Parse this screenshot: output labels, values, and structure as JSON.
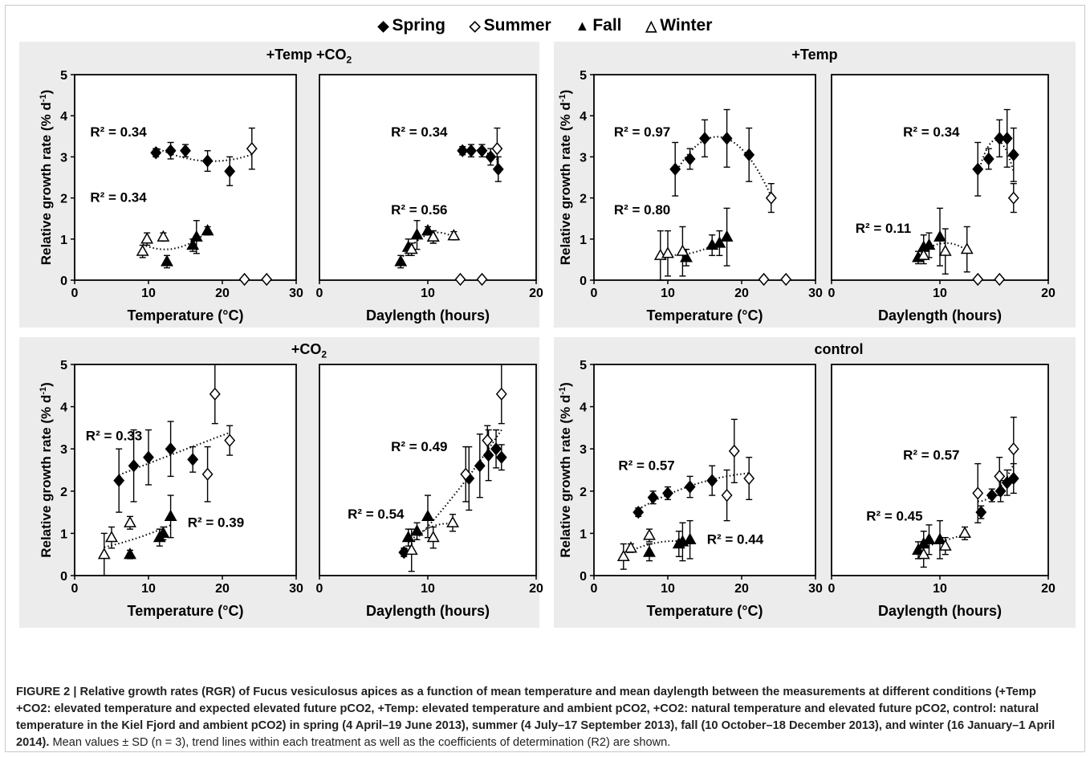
{
  "legend": [
    {
      "label": "Spring",
      "symbol": "filled-diamond"
    },
    {
      "label": "Summer",
      "symbol": "open-diamond"
    },
    {
      "label": "Fall",
      "symbol": "filled-triangle"
    },
    {
      "label": "Winter",
      "symbol": "open-triangle"
    }
  ],
  "panel_titles": {
    "temp_co2_prefix": "+Temp +CO",
    "temp_co2_sub": "2",
    "temp": "+Temp",
    "co2_prefix": "+CO",
    "co2_sub": "2",
    "control": "control"
  },
  "axis_labels": {
    "ylabel": "Relative growth rate (% d",
    "ylabel_sup": "-1",
    "ylabel_end": ")",
    "xlabel_temp": "Temperature (°C)",
    "xlabel_day": "Daylength (hours)"
  },
  "caption": {
    "bold_part": "FIGURE 2 | Relative growth rates (RGR) of Fucus vesiculosus apices as a function of mean temperature and mean daylength between the measurements at different conditions (+Temp +CO2: elevated temperature and expected elevated future pCO2, +Temp: elevated temperature and ambient pCO2, +CO2: natural temperature and elevated future pCO2, control: natural temperature in the Kiel Fjord and ambient pCO2) in spring (4 April–19 June 2013), summer (4 July–17 September 2013), fall (10 October–18 December 2013), and winter (16 January–1 April 2014).",
    "normal_part": " Mean values ± SD (n = 3), trend lines within each treatment as well as the coefficients of determination (R2) are shown."
  },
  "chart_data": [
    {
      "type": "scatter",
      "panel": "+Temp +CO2 / temperature",
      "xlabel": "Temperature (°C)",
      "ylabel": "Relative growth rate (% d-1)",
      "xlim": [
        0,
        30
      ],
      "ylim": [
        0,
        5
      ],
      "xticks": [
        "0",
        "10",
        "20",
        "30"
      ],
      "yticks": [
        "0",
        "1",
        "2",
        "3",
        "4",
        "5"
      ],
      "series": [
        {
          "name": "Spring",
          "points": [
            [
              11,
              3.1,
              0.1
            ],
            [
              13,
              3.15,
              0.2
            ],
            [
              15,
              3.15,
              0.15
            ],
            [
              18,
              2.9,
              0.25
            ],
            [
              21,
              2.65,
              0.35
            ]
          ]
        },
        {
          "name": "Summer",
          "points": [
            [
              24,
              3.2,
              0.5
            ],
            [
              23,
              0.02,
              0
            ],
            [
              26,
              0.02,
              0
            ]
          ]
        },
        {
          "name": "Fall",
          "points": [
            [
              12.5,
              0.45,
              0.15
            ],
            [
              16.5,
              1.05,
              0.4
            ],
            [
              18,
              1.2,
              0.1
            ],
            [
              16,
              0.85,
              0.15
            ]
          ]
        },
        {
          "name": "Winter",
          "points": [
            [
              9.2,
              0.7,
              0.15
            ],
            [
              9.8,
              1.0,
              0.15
            ],
            [
              12,
              1.05,
              0.1
            ]
          ]
        }
      ],
      "annotations": [
        "R² = 0.34",
        "R² = 0.34"
      ]
    },
    {
      "type": "scatter",
      "panel": "+Temp +CO2 / daylength",
      "xlabel": "Daylength (hours)",
      "ylabel": "",
      "xlim": [
        0,
        20
      ],
      "ylim": [
        0,
        5
      ],
      "xticks": [
        "0",
        "10",
        "20"
      ],
      "series": [
        {
          "name": "Spring",
          "points": [
            [
              13.2,
              3.15,
              0.1
            ],
            [
              14,
              3.15,
              0.15
            ],
            [
              15,
              3.15,
              0.15
            ],
            [
              15.8,
              3.0,
              0.2
            ],
            [
              16.5,
              2.7,
              0.3
            ]
          ]
        },
        {
          "name": "Summer",
          "points": [
            [
              16.4,
              3.2,
              0.5
            ],
            [
              13,
              0.02,
              0
            ],
            [
              15,
              0.02,
              0
            ]
          ]
        },
        {
          "name": "Fall",
          "points": [
            [
              7.5,
              0.45,
              0.15
            ],
            [
              8.2,
              0.8,
              0.2
            ],
            [
              9,
              1.1,
              0.35
            ],
            [
              10,
              1.2,
              0.1
            ],
            [
              10.5,
              1.05,
              0.15
            ]
          ]
        },
        {
          "name": "Winter",
          "points": [
            [
              8.5,
              0.75,
              0.15
            ],
            [
              10.5,
              1.05,
              0.15
            ],
            [
              12.4,
              1.08,
              0.1
            ]
          ]
        }
      ],
      "annotations": [
        "R² = 0.34",
        "R² = 0.56"
      ]
    },
    {
      "type": "scatter",
      "panel": "+Temp / temperature",
      "xlabel": "Temperature (°C)",
      "ylabel": "Relative growth rate (% d-1)",
      "xlim": [
        0,
        30
      ],
      "ylim": [
        0,
        5
      ],
      "xticks": [
        "0",
        "10",
        "20",
        "30"
      ],
      "yticks": [
        "0",
        "1",
        "2",
        "3",
        "4",
        "5"
      ],
      "series": [
        {
          "name": "Spring",
          "points": [
            [
              11,
              2.7,
              0.65
            ],
            [
              13,
              2.95,
              0.25
            ],
            [
              15,
              3.45,
              0.45
            ],
            [
              18,
              3.45,
              0.7
            ],
            [
              21,
              3.05,
              0.65
            ]
          ]
        },
        {
          "name": "Summer",
          "points": [
            [
              24,
              2.0,
              0.35
            ],
            [
              23,
              0.02,
              0
            ],
            [
              26,
              0.02,
              0
            ]
          ]
        },
        {
          "name": "Fall",
          "points": [
            [
              12.5,
              0.55,
              0.2
            ],
            [
              16,
              0.85,
              0.25
            ],
            [
              17,
              0.9,
              0.3
            ],
            [
              18,
              1.05,
              0.7
            ]
          ]
        },
        {
          "name": "Winter",
          "points": [
            [
              9,
              0.6,
              0.6
            ],
            [
              10,
              0.65,
              0.55
            ],
            [
              12,
              0.7,
              0.6
            ]
          ]
        }
      ],
      "annotations": [
        "R² = 0.97",
        "R² = 0.80"
      ]
    },
    {
      "type": "scatter",
      "panel": "+Temp / daylength",
      "xlabel": "Daylength (hours)",
      "ylabel": "",
      "xlim": [
        0,
        20
      ],
      "ylim": [
        0,
        5
      ],
      "xticks": [
        "0",
        "10",
        "20"
      ],
      "series": [
        {
          "name": "Spring",
          "points": [
            [
              13.5,
              2.7,
              0.65
            ],
            [
              14.5,
              2.95,
              0.25
            ],
            [
              15.5,
              3.45,
              0.45
            ],
            [
              16.2,
              3.45,
              0.7
            ],
            [
              16.8,
              3.05,
              0.65
            ]
          ]
        },
        {
          "name": "Summer",
          "points": [
            [
              16.8,
              2.0,
              0.35
            ],
            [
              13.5,
              0.02,
              0
            ],
            [
              15.5,
              0.02,
              0
            ]
          ]
        },
        {
          "name": "Fall",
          "points": [
            [
              8,
              0.55,
              0.15
            ],
            [
              8.5,
              0.8,
              0.3
            ],
            [
              9,
              0.85,
              0.3
            ],
            [
              10,
              1.05,
              0.7
            ]
          ]
        },
        {
          "name": "Winter",
          "points": [
            [
              8.5,
              0.6,
              0.2
            ],
            [
              10.5,
              0.7,
              0.55
            ],
            [
              12.5,
              0.75,
              0.55
            ]
          ]
        }
      ],
      "annotations": [
        "R² = 0.34",
        "R² = 0.11"
      ]
    },
    {
      "type": "scatter",
      "panel": "+CO2 / temperature",
      "xlabel": "Temperature (°C)",
      "ylabel": "Relative growth rate (% d-1)",
      "xlim": [
        0,
        30
      ],
      "ylim": [
        0,
        5
      ],
      "xticks": [
        "0",
        "10",
        "20",
        "30"
      ],
      "yticks": [
        "0",
        "1",
        "2",
        "3",
        "4",
        "5"
      ],
      "series": [
        {
          "name": "Spring",
          "points": [
            [
              6,
              2.25,
              0.75
            ],
            [
              8,
              2.6,
              0.85
            ],
            [
              10,
              2.8,
              0.65
            ],
            [
              13,
              3.0,
              0.65
            ],
            [
              16,
              2.75,
              0.3
            ]
          ]
        },
        {
          "name": "Summer",
          "points": [
            [
              18,
              2.4,
              0.65
            ],
            [
              19,
              4.3,
              0.7
            ],
            [
              21,
              3.2,
              0.35
            ]
          ]
        },
        {
          "name": "Fall",
          "points": [
            [
              7.5,
              0.5,
              0.1
            ],
            [
              11.5,
              0.9,
              0.2
            ],
            [
              12,
              1.0,
              0.15
            ],
            [
              13,
              1.4,
              0.5
            ]
          ]
        },
        {
          "name": "Winter",
          "points": [
            [
              4,
              0.5,
              0.5
            ],
            [
              5,
              0.9,
              0.25
            ],
            [
              7.5,
              1.25,
              0.15
            ]
          ]
        }
      ],
      "annotations": [
        "R² = 0.33",
        "R² = 0.39"
      ]
    },
    {
      "type": "scatter",
      "panel": "+CO2 / daylength",
      "xlabel": "Daylength (hours)",
      "ylabel": "",
      "xlim": [
        0,
        20
      ],
      "ylim": [
        0,
        5
      ],
      "xticks": [
        "0",
        "10",
        "20"
      ],
      "series": [
        {
          "name": "Spring",
          "points": [
            [
              7.8,
              0.55,
              0.1
            ],
            [
              13.8,
              2.3,
              0.75
            ],
            [
              14.8,
              2.6,
              0.75
            ],
            [
              15.6,
              2.85,
              0.6
            ],
            [
              16.3,
              3.0,
              0.45
            ],
            [
              16.8,
              2.8,
              0.3
            ]
          ]
        },
        {
          "name": "Summer",
          "points": [
            [
              13.5,
              2.4,
              0.65
            ],
            [
              15.5,
              3.2,
              0.35
            ],
            [
              16.8,
              4.3,
              0.7
            ]
          ]
        },
        {
          "name": "Fall",
          "points": [
            [
              8.2,
              0.9,
              0.2
            ],
            [
              9,
              1.05,
              0.2
            ],
            [
              10,
              1.4,
              0.5
            ]
          ]
        },
        {
          "name": "Winter",
          "points": [
            [
              8.5,
              0.6,
              0.5
            ],
            [
              10.5,
              0.9,
              0.25
            ],
            [
              12.3,
              1.25,
              0.2
            ]
          ]
        }
      ],
      "annotations": [
        "R² = 0.49",
        "R² = 0.54"
      ]
    },
    {
      "type": "scatter",
      "panel": "control / temperature",
      "xlabel": "Temperature (°C)",
      "ylabel": "Relative growth rate (% d-1)",
      "xlim": [
        0,
        30
      ],
      "ylim": [
        0,
        5
      ],
      "xticks": [
        "0",
        "10",
        "20",
        "30"
      ],
      "yticks": [
        "0",
        "1",
        "2",
        "3",
        "4",
        "5"
      ],
      "series": [
        {
          "name": "Spring",
          "points": [
            [
              6,
              1.5,
              0.1
            ],
            [
              8,
              1.85,
              0.15
            ],
            [
              10,
              1.95,
              0.15
            ],
            [
              13,
              2.1,
              0.25
            ],
            [
              16,
              2.25,
              0.35
            ]
          ]
        },
        {
          "name": "Summer",
          "points": [
            [
              18,
              1.9,
              0.6
            ],
            [
              19,
              2.95,
              0.75
            ],
            [
              21,
              2.3,
              0.5
            ]
          ]
        },
        {
          "name": "Fall",
          "points": [
            [
              7.5,
              0.55,
              0.2
            ],
            [
              11.5,
              0.75,
              0.3
            ],
            [
              12,
              0.8,
              0.45
            ],
            [
              13,
              0.85,
              0.45
            ]
          ]
        },
        {
          "name": "Winter",
          "points": [
            [
              4,
              0.45,
              0.3
            ],
            [
              5,
              0.65,
              0.1
            ],
            [
              7.5,
              0.95,
              0.15
            ]
          ]
        }
      ],
      "annotations": [
        "R² = 0.57",
        "R² = 0.44"
      ]
    },
    {
      "type": "scatter",
      "panel": "control / daylength",
      "xlabel": "Daylength (hours)",
      "ylabel": "",
      "xlim": [
        0,
        20
      ],
      "ylim": [
        0,
        5
      ],
      "xticks": [
        "0",
        "10",
        "20"
      ],
      "series": [
        {
          "name": "Spring",
          "points": [
            [
              13.8,
              1.5,
              0.15
            ],
            [
              14.8,
              1.9,
              0.15
            ],
            [
              15.6,
              2.0,
              0.25
            ],
            [
              16.2,
              2.2,
              0.3
            ],
            [
              16.8,
              2.3,
              0.35
            ]
          ]
        },
        {
          "name": "Summer",
          "points": [
            [
              13.5,
              1.95,
              0.7
            ],
            [
              15.5,
              2.35,
              0.45
            ],
            [
              16.8,
              3.0,
              0.75
            ]
          ]
        },
        {
          "name": "Fall",
          "points": [
            [
              8,
              0.6,
              0.2
            ],
            [
              8.5,
              0.75,
              0.3
            ],
            [
              9,
              0.85,
              0.35
            ],
            [
              10,
              0.85,
              0.45
            ]
          ]
        },
        {
          "name": "Winter",
          "points": [
            [
              8.5,
              0.5,
              0.3
            ],
            [
              10.5,
              0.7,
              0.2
            ],
            [
              12.3,
              1.0,
              0.15
            ]
          ]
        }
      ],
      "annotations": [
        "R² = 0.57",
        "R² = 0.45"
      ]
    }
  ]
}
